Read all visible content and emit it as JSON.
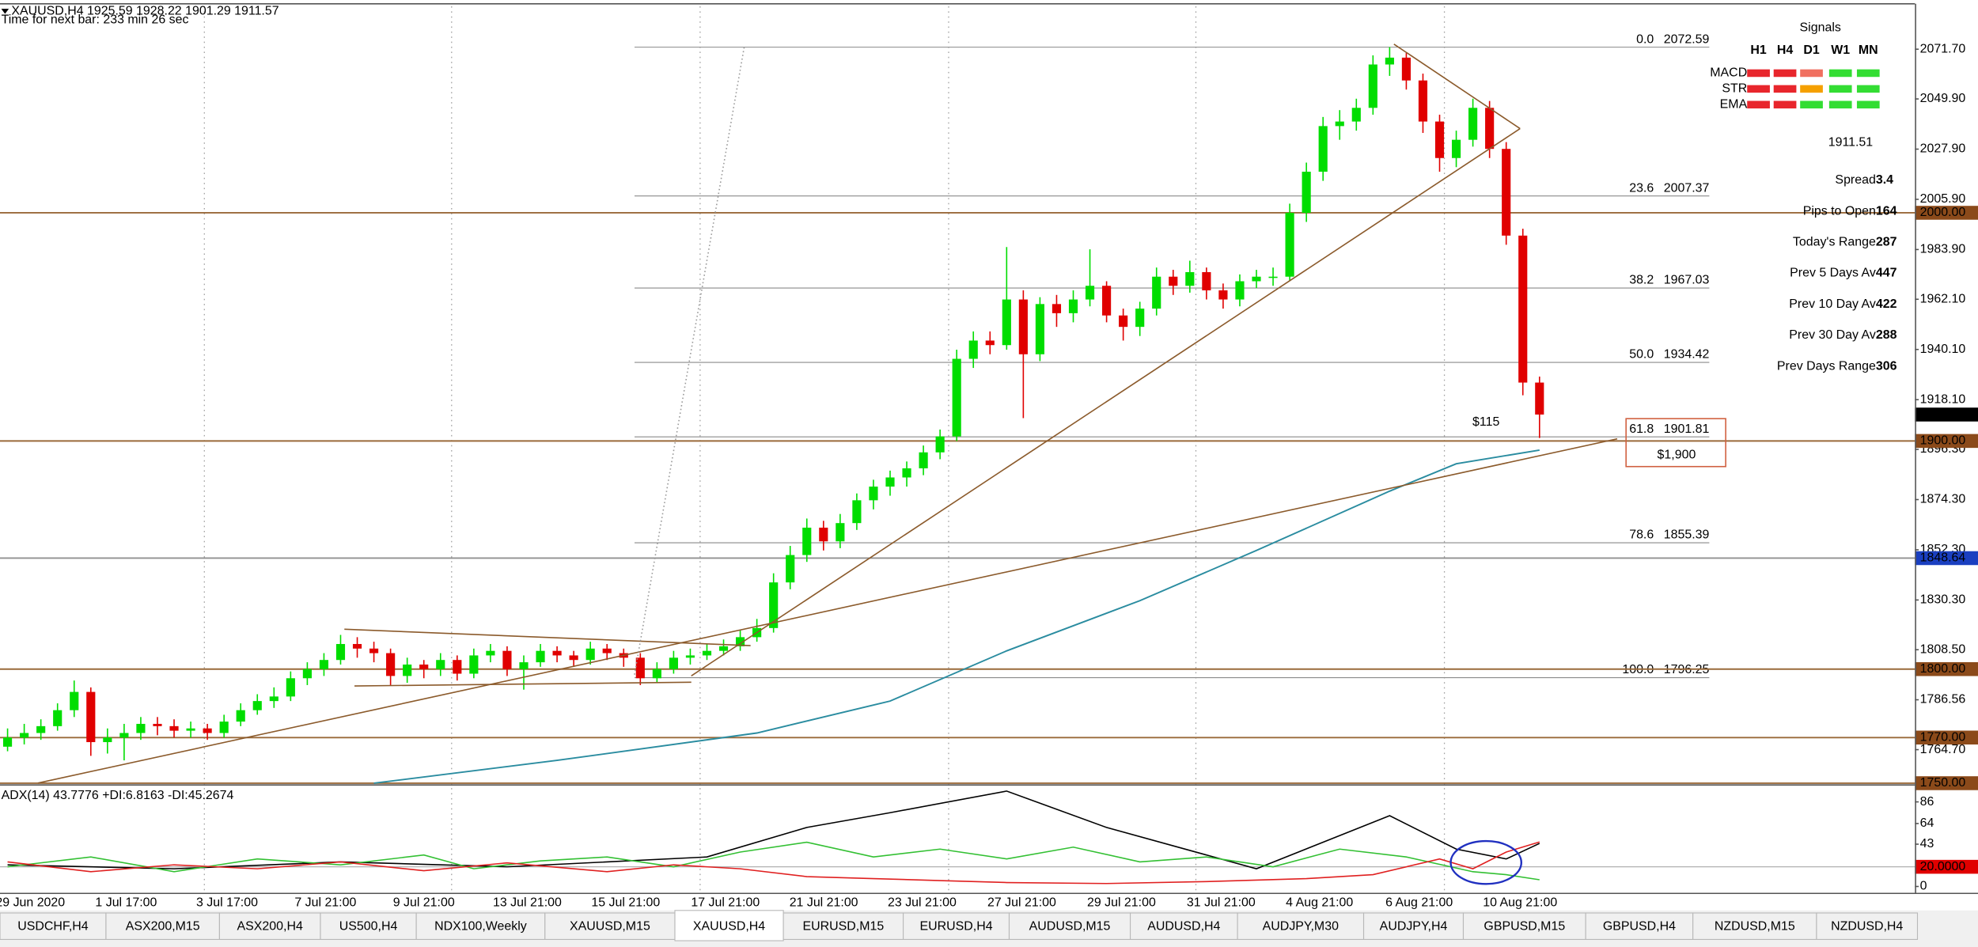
{
  "header": {
    "symbol_line": "XAUUSD,H4  1925.59 1928.22 1901.29 1911.57",
    "timer": "Time for next bar: 233 min 26 sec"
  },
  "chart_data": [
    {
      "type": "candlestick",
      "up_color": "#00dd00",
      "down_color": "#e00000",
      "ylim": [
        1749.5,
        2090.5
      ],
      "yticks": [
        {
          "value": 2071.7,
          "label": "2071.70"
        },
        {
          "value": 2049.9,
          "label": "2049.90"
        },
        {
          "value": 2027.9,
          "label": "2027.90"
        },
        {
          "value": 2005.9,
          "label": "2005.90"
        },
        {
          "value": 1983.9,
          "label": "1983.90"
        },
        {
          "value": 1962.1,
          "label": "1962.10"
        },
        {
          "value": 1940.1,
          "label": "1940.10"
        },
        {
          "value": 1918.1,
          "label": "1918.10"
        },
        {
          "value": 1896.3,
          "label": "1896.30"
        },
        {
          "value": 1874.3,
          "label": "1874.30"
        },
        {
          "value": 1852.3,
          "label": "1852.30"
        },
        {
          "value": 1830.3,
          "label": "1830.30"
        },
        {
          "value": 1808.5,
          "label": "1808.50"
        },
        {
          "value": 1786.56,
          "label": "1786.56"
        },
        {
          "value": 1764.7,
          "label": "1764.70"
        }
      ],
      "candles": [
        [
          1766,
          1774,
          1764,
          1770
        ],
        [
          1770,
          1776,
          1767,
          1772
        ],
        [
          1772,
          1778,
          1769,
          1775
        ],
        [
          1775,
          1785,
          1773,
          1782
        ],
        [
          1782,
          1795,
          1779,
          1790
        ],
        [
          1790,
          1792,
          1762,
          1768
        ],
        [
          1768,
          1774,
          1763,
          1770
        ],
        [
          1770,
          1776,
          1760,
          1772
        ],
        [
          1772,
          1779,
          1769,
          1776
        ],
        [
          1776,
          1779,
          1771,
          1775
        ],
        [
          1775,
          1778,
          1770,
          1773
        ],
        [
          1773,
          1777,
          1770,
          1774
        ],
        [
          1774,
          1776,
          1769,
          1772
        ],
        [
          1772,
          1780,
          1770,
          1777
        ],
        [
          1777,
          1785,
          1775,
          1782
        ],
        [
          1782,
          1789,
          1780,
          1786
        ],
        [
          1786,
          1792,
          1783,
          1788
        ],
        [
          1788,
          1799,
          1786,
          1796
        ],
        [
          1796,
          1803,
          1793,
          1800
        ],
        [
          1800,
          1807,
          1797,
          1804
        ],
        [
          1804,
          1815,
          1802,
          1811
        ],
        [
          1811,
          1814,
          1805,
          1809
        ],
        [
          1809,
          1812,
          1803,
          1807
        ],
        [
          1807,
          1809,
          1793,
          1797
        ],
        [
          1797,
          1805,
          1794,
          1802
        ],
        [
          1802,
          1804,
          1796,
          1800
        ],
        [
          1800,
          1807,
          1797,
          1804
        ],
        [
          1804,
          1806,
          1795,
          1798
        ],
        [
          1798,
          1809,
          1796,
          1806
        ],
        [
          1806,
          1811,
          1803,
          1808
        ],
        [
          1808,
          1810,
          1797,
          1800
        ],
        [
          1800,
          1806,
          1791,
          1803
        ],
        [
          1803,
          1811,
          1801,
          1808
        ],
        [
          1808,
          1810,
          1803,
          1806
        ],
        [
          1806,
          1808,
          1801,
          1804
        ],
        [
          1804,
          1812,
          1802,
          1809
        ],
        [
          1809,
          1811,
          1804,
          1807
        ],
        [
          1807,
          1809,
          1801,
          1805
        ],
        [
          1805,
          1807,
          1793,
          1796
        ],
        [
          1796,
          1803,
          1794,
          1800
        ],
        [
          1800,
          1808,
          1798,
          1805
        ],
        [
          1805,
          1809,
          1802,
          1806
        ],
        [
          1806,
          1811,
          1804,
          1808
        ],
        [
          1808,
          1813,
          1806,
          1810
        ],
        [
          1810,
          1817,
          1808,
          1814
        ],
        [
          1814,
          1822,
          1812,
          1818
        ],
        [
          1818,
          1842,
          1816,
          1838
        ],
        [
          1838,
          1854,
          1835,
          1850
        ],
        [
          1850,
          1866,
          1847,
          1862
        ],
        [
          1862,
          1865,
          1852,
          1856
        ],
        [
          1856,
          1868,
          1853,
          1864
        ],
        [
          1864,
          1877,
          1861,
          1874
        ],
        [
          1874,
          1883,
          1870,
          1880
        ],
        [
          1880,
          1887,
          1876,
          1884
        ],
        [
          1884,
          1891,
          1880,
          1888
        ],
        [
          1888,
          1898,
          1885,
          1895
        ],
        [
          1895,
          1905,
          1892,
          1902
        ],
        [
          1902,
          1940,
          1900,
          1936
        ],
        [
          1936,
          1948,
          1932,
          1944
        ],
        [
          1944,
          1948,
          1938,
          1942
        ],
        [
          1942,
          1985,
          1940,
          1962
        ],
        [
          1962,
          1966,
          1910,
          1938
        ],
        [
          1938,
          1963,
          1935,
          1960
        ],
        [
          1960,
          1964,
          1950,
          1956
        ],
        [
          1956,
          1966,
          1952,
          1962
        ],
        [
          1962,
          1984,
          1959,
          1968
        ],
        [
          1968,
          1970,
          1952,
          1955
        ],
        [
          1955,
          1958,
          1944,
          1950
        ],
        [
          1950,
          1961,
          1946,
          1958
        ],
        [
          1958,
          1976,
          1955,
          1972
        ],
        [
          1972,
          1975,
          1964,
          1968
        ],
        [
          1968,
          1979,
          1965,
          1974
        ],
        [
          1974,
          1976,
          1962,
          1966
        ],
        [
          1966,
          1969,
          1958,
          1962
        ],
        [
          1962,
          1973,
          1959,
          1970
        ],
        [
          1970,
          1975,
          1967,
          1972
        ],
        [
          1972,
          1976,
          1968,
          1972
        ],
        [
          1972,
          2004,
          1970,
          2000
        ],
        [
          2000,
          2022,
          1996,
          2018
        ],
        [
          2018,
          2042,
          2014,
          2038
        ],
        [
          2038,
          2045,
          2032,
          2040
        ],
        [
          2040,
          2050,
          2036,
          2046
        ],
        [
          2046,
          2069,
          2043,
          2065
        ],
        [
          2065,
          2072.59,
          2060,
          2068
        ],
        [
          2068,
          2070,
          2054,
          2058
        ],
        [
          2058,
          2061,
          2035,
          2040
        ],
        [
          2040,
          2043,
          2018,
          2024
        ],
        [
          2024,
          2036,
          2020,
          2032
        ],
        [
          2032,
          2050,
          2029,
          2046
        ],
        [
          2046,
          2049,
          2024,
          2028
        ],
        [
          2028,
          2031,
          1986,
          1990
        ],
        [
          1990,
          1993,
          1920,
          1925.59
        ],
        [
          1925.59,
          1928.22,
          1901.29,
          1911.57
        ]
      ],
      "ma": {
        "color": "#2a8ca0",
        "x": [
          22,
          33,
          45,
          53,
          60,
          68,
          75,
          83,
          87,
          92
        ],
        "values": [
          1750,
          1760,
          1772,
          1786,
          1808,
          1830,
          1852,
          1878,
          1890,
          1896
        ]
      },
      "levels": [
        {
          "value": 2000,
          "label": "2000.00",
          "color": "#8b4a1a",
          "line_color": "#9a6a3a"
        },
        {
          "value": 1900,
          "label": "1900.00",
          "color": "#8b4a1a",
          "line_color": "#9a6a3a"
        },
        {
          "value": 1848.64,
          "label": "1848.64",
          "color": "#1a3fc0",
          "line_color": "#909090"
        },
        {
          "value": 1800,
          "label": "1800.00",
          "color": "#8b4a1a",
          "line_color": "#9a6a3a"
        },
        {
          "value": 1770,
          "label": "1770.00",
          "color": "#8b4a1a",
          "line_color": "#9a6a3a"
        },
        {
          "value": 1750,
          "label": "1750.00",
          "color": "#8b4a1a",
          "line_color": "#9a6a3a"
        }
      ],
      "last_price": 1911.57,
      "fib": [
        {
          "level": "0.0",
          "price": 2072.59
        },
        {
          "level": "23.6",
          "price": 2007.37
        },
        {
          "level": "38.2",
          "price": 1967.03
        },
        {
          "level": "50.0",
          "price": 1934.42
        },
        {
          "level": "61.8",
          "price": 1901.81
        },
        {
          "level": "78.6",
          "price": 1855.39
        },
        {
          "level": "100.0",
          "price": 1796.25
        }
      ],
      "annotations": [
        "$115",
        "$1,900"
      ],
      "x_labels": [
        "29 Jun 2020",
        "1 Jul 17:00",
        "3 Jul 17:00",
        "7 Jul 21:00",
        "9 Jul 21:00",
        "13 Jul 21:00",
        "15 Jul 21:00",
        "17 Jul 21:00",
        "21 Jul 21:00",
        "23 Jul 21:00",
        "27 Jul 21:00",
        "29 Jul 21:00",
        "31 Jul 21:00",
        "4 Aug 21:00",
        "6 Aug 21:00",
        "10 Aug 21:00"
      ]
    },
    {
      "type": "line",
      "title": "ADX(14) 43.7776 +DI:6.8163 -DI:45.2674",
      "ylim": [
        0,
        100
      ],
      "yticks": [
        86,
        64,
        43,
        0
      ],
      "level": {
        "value": 20,
        "label": "20.0000"
      },
      "series": [
        {
          "color": "#000000",
          "x": [
            0,
            10,
            20,
            30,
            42,
            48,
            53,
            60,
            66,
            75,
            83,
            87,
            90,
            92
          ],
          "values": [
            22,
            18,
            25,
            20,
            30,
            60,
            75,
            97,
            60,
            18,
            72,
            38,
            28,
            43.78
          ]
        },
        {
          "color": "#33c033",
          "x": [
            0,
            5,
            10,
            15,
            20,
            25,
            28,
            32,
            36,
            40,
            44,
            48,
            52,
            56,
            60,
            64,
            68,
            72,
            76,
            80,
            84,
            88,
            90,
            92
          ],
          "values": [
            20,
            30,
            15,
            28,
            22,
            32,
            18,
            26,
            30,
            20,
            35,
            45,
            30,
            38,
            28,
            40,
            25,
            30,
            20,
            38,
            30,
            15,
            12,
            6.82
          ]
        },
        {
          "color": "#e02020",
          "x": [
            0,
            5,
            10,
            15,
            20,
            25,
            30,
            36,
            40,
            44,
            48,
            52,
            56,
            60,
            66,
            72,
            78,
            82,
            86,
            88,
            90,
            92
          ],
          "values": [
            25,
            15,
            22,
            18,
            25,
            16,
            24,
            15,
            22,
            18,
            10,
            8,
            6,
            4,
            3,
            5,
            8,
            12,
            28,
            18,
            35,
            45.27
          ]
        }
      ]
    }
  ],
  "signals": {
    "title": "Signals",
    "columns": [
      "H1",
      "H4",
      "D1",
      "W1",
      "MN"
    ],
    "rows": [
      {
        "label": "MACD",
        "colors": [
          "#e8262c",
          "#e8262c",
          "#f07060",
          "#33dd33",
          "#33dd33"
        ]
      },
      {
        "label": "STR",
        "colors": [
          "#e8262c",
          "#e8262c",
          "#f5a000",
          "#33dd33",
          "#33dd33"
        ]
      },
      {
        "label": "EMA",
        "colors": [
          "#e8262c",
          "#e8262c",
          "#33dd33",
          "#33dd33",
          "#33dd33"
        ]
      }
    ],
    "price": 1911.51,
    "stats": [
      {
        "label": "Spread",
        "value": 3.4,
        "color": "#f08000"
      },
      {
        "label": "Pips to Open",
        "value": 164,
        "color": "#f05020"
      },
      {
        "label": "Today's Range",
        "value": 287,
        "color": "#1a9a1a"
      },
      {
        "label": "Prev 5 Days Av",
        "value": 447,
        "color": "#1a9a1a"
      },
      {
        "label": "Prev 10 Day Av",
        "value": 422,
        "color": "#1a9a1a"
      },
      {
        "label": "Prev 30 Day Av",
        "value": 288,
        "color": "#1a9a1a"
      },
      {
        "label": "Prev Days Range",
        "value": 306,
        "color": "#1a9a1a"
      }
    ]
  },
  "tabs": [
    "USDCHF,H4",
    "ASX200,M15",
    "ASX200,H4",
    "US500,H4",
    "NDX100,Weekly",
    "XAUUSD,M15",
    "XAUUSD,H4",
    "EURUSD,M15",
    "EURUSD,H4",
    "AUDUSD,M15",
    "AUDUSD,H4",
    "AUDJPY,M30",
    "AUDJPY,H4",
    "GBPUSD,M15",
    "GBPUSD,H4",
    "NZDUSD,M15",
    "NZDUSD,H4"
  ],
  "active_tab": 6
}
